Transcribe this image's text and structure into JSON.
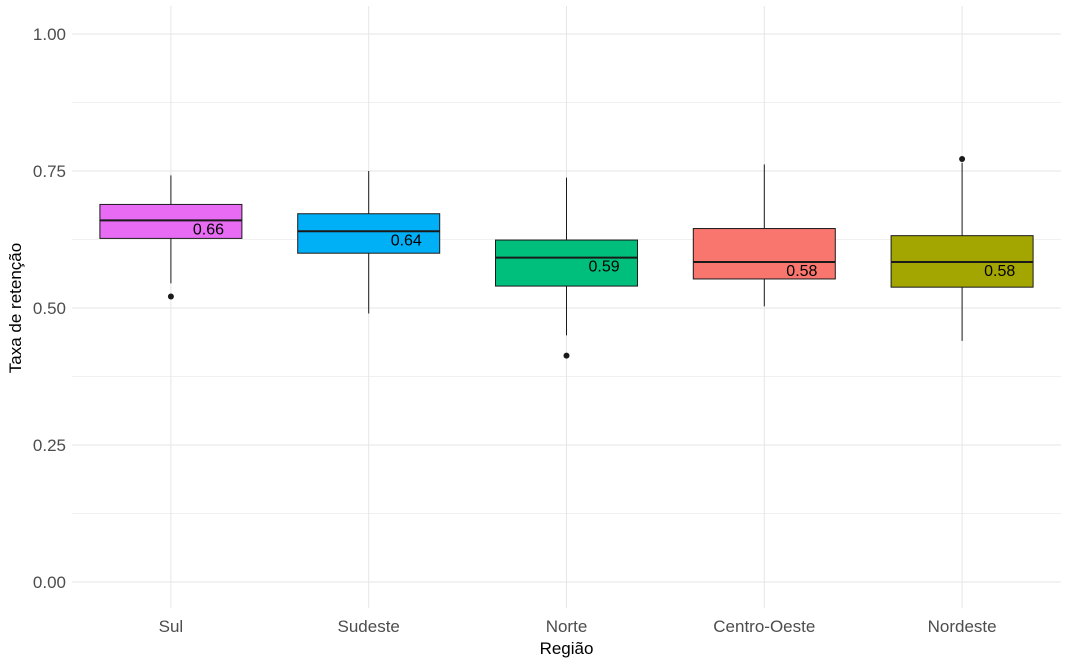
{
  "chart_data": {
    "type": "boxplot",
    "xlabel": "Região",
    "ylabel": "Taxa de retenção",
    "ylim": [
      0,
      1
    ],
    "yticks": [
      0.0,
      0.25,
      0.5,
      0.75,
      1.0
    ],
    "ytick_labels": [
      "0.00",
      "0.25",
      "0.50",
      "0.75",
      "1.00"
    ],
    "grid": true,
    "legend": "none",
    "categories": [
      "Sul",
      "Sudeste",
      "Norte",
      "Centro-Oeste",
      "Nordeste"
    ],
    "boxes": [
      {
        "category": "Sul",
        "color": "#E76BF3",
        "whisker_low": 0.545,
        "q1": 0.627,
        "median": 0.66,
        "q3": 0.689,
        "whisker_high": 0.742,
        "outliers": [
          0.521
        ],
        "median_label": "0.66"
      },
      {
        "category": "Sudeste",
        "color": "#00B0F6",
        "whisker_low": 0.49,
        "q1": 0.6,
        "median": 0.64,
        "q3": 0.672,
        "whisker_high": 0.75,
        "outliers": [],
        "median_label": "0.64"
      },
      {
        "category": "Norte",
        "color": "#00BF7D",
        "whisker_low": 0.45,
        "q1": 0.54,
        "median": 0.592,
        "q3": 0.624,
        "whisker_high": 0.738,
        "outliers": [
          0.413
        ],
        "median_label": "0.59"
      },
      {
        "category": "Centro-Oeste",
        "color": "#F8766D",
        "whisker_low": 0.503,
        "q1": 0.553,
        "median": 0.584,
        "q3": 0.645,
        "whisker_high": 0.762,
        "outliers": [],
        "median_label": "0.58"
      },
      {
        "category": "Nordeste",
        "color": "#A3A500",
        "whisker_low": 0.44,
        "q1": 0.538,
        "median": 0.584,
        "q3": 0.632,
        "whisker_high": 0.765,
        "outliers": [
          0.772
        ],
        "median_label": "0.58"
      }
    ]
  }
}
